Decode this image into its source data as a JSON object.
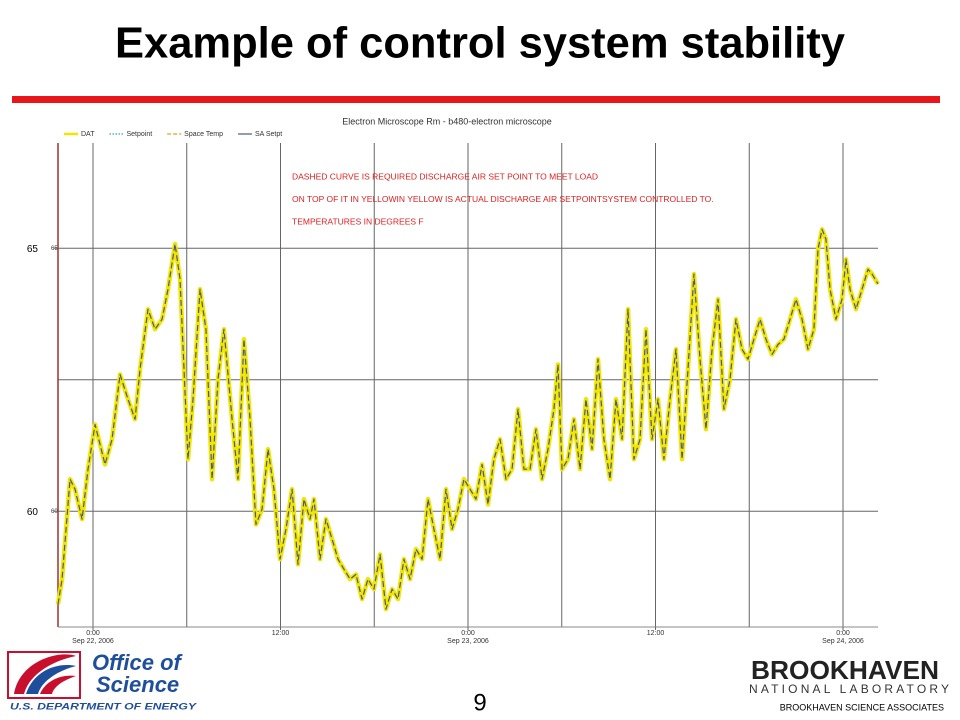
{
  "slide": {
    "title": "Example of control system stability",
    "page_number": "9",
    "footer": "BROOKHAVEN SCIENCE ASSOCIATES",
    "left_logo": {
      "line1": "Office of",
      "line2": "Science",
      "line3": "U.S. DEPARTMENT OF ENERGY"
    },
    "right_logo": {
      "line1": "BROOKHAVEN",
      "line2": "NATIONAL LABORATORY"
    }
  },
  "chart_data": {
    "type": "line",
    "title": "Electron Microscope Rm - b480-electron microscope",
    "annotations": [
      "DASHED CURVE IS REQUIRED DISCHARGE AIR SET POINT TO MEET LOAD",
      "ON TOP OF IT IN YELLOWIN YELLOW IS ACTUAL DISCHARGE AIR SETPOINTSYSTEM CONTROLLED TO.",
      "TEMPERATURES IN DEGREES F"
    ],
    "legend": [
      {
        "name": "DAT",
        "color": "#f2e600",
        "style": "solid"
      },
      {
        "name": "Setpoint",
        "color": "#2aa8c8",
        "style": "dotted"
      },
      {
        "name": "Space Temp",
        "color": "#e0a020",
        "style": "dashed"
      },
      {
        "name": "SA Setpt",
        "color": "#4a5a80",
        "style": "solid"
      }
    ],
    "xlim": [
      -2.24,
      50.24
    ],
    "ylim": [
      57.8,
      67.0
    ],
    "xticks": [
      {
        "value": 0,
        "label": "0:00"
      },
      {
        "value": 12,
        "label": "12:00"
      },
      {
        "value": 24,
        "label": "0:00"
      },
      {
        "value": 36,
        "label": "12:00"
      },
      {
        "value": 48,
        "label": "0:00"
      }
    ],
    "xtick_dates": [
      {
        "value": 0,
        "label": "Sep 22, 2006"
      },
      {
        "value": 24,
        "label": "Sep 23, 2006"
      },
      {
        "value": 48,
        "label": "Sep 24, 2006"
      }
    ],
    "x_gridlines": [
      0,
      6,
      12,
      18,
      24,
      30,
      36,
      42,
      48
    ],
    "yticks": [
      60,
      65
    ],
    "y_gridlines": [
      60,
      62.5,
      65
    ],
    "x": [
      -2.24,
      -1.98,
      -1.47,
      -1.15,
      -0.7,
      -0.32,
      0.13,
      0.77,
      1.22,
      1.73,
      2.24,
      2.69,
      3.01,
      3.52,
      3.97,
      4.42,
      4.8,
      5.25,
      5.57,
      6.08,
      6.4,
      6.85,
      7.23,
      7.62,
      8.0,
      8.38,
      8.9,
      9.28,
      9.66,
      10.05,
      10.43,
      10.82,
      11.2,
      11.58,
      11.97,
      12.35,
      12.74,
      13.12,
      13.5,
      13.89,
      14.14,
      14.53,
      14.91,
      15.3,
      15.68,
      16.06,
      16.45,
      16.83,
      17.22,
      17.6,
      17.98,
      18.37,
      18.75,
      19.14,
      19.52,
      19.9,
      20.29,
      20.67,
      21.06,
      21.44,
      21.82,
      22.21,
      22.59,
      22.98,
      23.36,
      23.74,
      24.13,
      24.51,
      24.9,
      25.28,
      25.66,
      26.05,
      26.43,
      26.82,
      27.2,
      27.58,
      27.97,
      28.35,
      28.74,
      29.12,
      29.5,
      29.76,
      30.02,
      30.4,
      30.78,
      31.17,
      31.55,
      31.94,
      32.32,
      32.7,
      33.09,
      33.47,
      33.86,
      34.24,
      34.62,
      35.01,
      35.39,
      35.78,
      36.16,
      36.54,
      36.93,
      37.31,
      37.7,
      38.08,
      38.46,
      38.85,
      39.23,
      39.62,
      40.0,
      40.38,
      40.77,
      41.15,
      41.54,
      41.92,
      42.3,
      42.69,
      43.07,
      43.46,
      43.84,
      44.22,
      44.61,
      44.99,
      45.38,
      45.76,
      46.14,
      46.4,
      46.66,
      46.91,
      47.17,
      47.55,
      47.94,
      48.19,
      48.45,
      48.83,
      49.22,
      49.6,
      49.86,
      50.24
    ],
    "series": [
      {
        "name": "DAT",
        "color": "#f2e600",
        "values": [
          58.23,
          58.71,
          60.61,
          60.42,
          59.85,
          60.8,
          61.65,
          60.89,
          61.37,
          62.6,
          62.13,
          61.75,
          62.7,
          63.84,
          63.46,
          63.65,
          64.22,
          65.08,
          64.41,
          60.99,
          62.13,
          64.22,
          63.46,
          60.61,
          62.51,
          63.46,
          61.75,
          60.61,
          63.27,
          61.75,
          59.75,
          60.04,
          61.18,
          60.42,
          59.09,
          59.66,
          60.42,
          58.99,
          60.23,
          59.85,
          60.23,
          59.09,
          59.85,
          59.47,
          59.09,
          58.9,
          58.71,
          58.8,
          58.33,
          58.71,
          58.52,
          59.18,
          58.14,
          58.52,
          58.33,
          59.09,
          58.71,
          59.28,
          59.09,
          60.23,
          59.66,
          59.09,
          60.42,
          59.66,
          60.04,
          60.61,
          60.42,
          60.23,
          60.89,
          60.13,
          60.99,
          61.37,
          60.61,
          60.8,
          61.94,
          60.8,
          60.8,
          61.56,
          60.61,
          61.18,
          61.94,
          62.79,
          60.8,
          60.99,
          61.75,
          60.8,
          62.13,
          61.18,
          62.89,
          61.37,
          60.61,
          62.13,
          61.37,
          63.84,
          60.99,
          61.37,
          63.46,
          61.37,
          62.13,
          60.99,
          62.13,
          63.08,
          60.99,
          62.7,
          64.51,
          62.89,
          61.56,
          63.08,
          64.03,
          61.94,
          62.51,
          63.65,
          63.08,
          62.89,
          63.27,
          63.65,
          63.27,
          62.98,
          63.17,
          63.27,
          63.65,
          64.03,
          63.65,
          63.08,
          63.46,
          64.98,
          65.36,
          65.17,
          64.22,
          63.65,
          64.03,
          64.79,
          64.22,
          63.84,
          64.22,
          64.6,
          64.51,
          64.32
        ]
      },
      {
        "name": "SA Setpt",
        "color": "#4a5a80",
        "values": [
          58.23,
          58.71,
          60.61,
          60.42,
          59.85,
          60.8,
          61.65,
          60.89,
          61.37,
          62.6,
          62.13,
          61.75,
          62.7,
          63.84,
          63.46,
          63.65,
          64.22,
          65.08,
          64.41,
          60.99,
          62.13,
          64.22,
          63.46,
          60.61,
          62.51,
          63.46,
          61.75,
          60.61,
          63.27,
          61.75,
          59.75,
          60.04,
          61.18,
          60.42,
          59.09,
          59.66,
          60.42,
          58.99,
          60.23,
          59.85,
          60.23,
          59.09,
          59.85,
          59.47,
          59.09,
          58.9,
          58.71,
          58.8,
          58.33,
          58.71,
          58.52,
          59.18,
          58.14,
          58.52,
          58.33,
          59.09,
          58.71,
          59.28,
          59.09,
          60.23,
          59.66,
          59.09,
          60.42,
          59.66,
          60.04,
          60.61,
          60.42,
          60.23,
          60.89,
          60.13,
          60.99,
          61.37,
          60.61,
          60.8,
          61.94,
          60.8,
          60.8,
          61.56,
          60.61,
          61.18,
          61.94,
          62.79,
          60.8,
          60.99,
          61.75,
          60.8,
          62.13,
          61.18,
          62.89,
          61.37,
          60.61,
          62.13,
          61.37,
          63.84,
          60.99,
          61.37,
          63.46,
          61.37,
          62.13,
          60.99,
          62.13,
          63.08,
          60.99,
          62.7,
          64.51,
          62.89,
          61.56,
          63.08,
          64.03,
          61.94,
          62.51,
          63.65,
          63.08,
          62.89,
          63.27,
          63.65,
          63.27,
          62.98,
          63.17,
          63.27,
          63.65,
          64.03,
          63.65,
          63.08,
          63.46,
          64.98,
          65.36,
          65.17,
          64.22,
          63.65,
          64.03,
          64.79,
          64.22,
          63.84,
          64.22,
          64.6,
          64.51,
          64.32
        ]
      }
    ]
  }
}
